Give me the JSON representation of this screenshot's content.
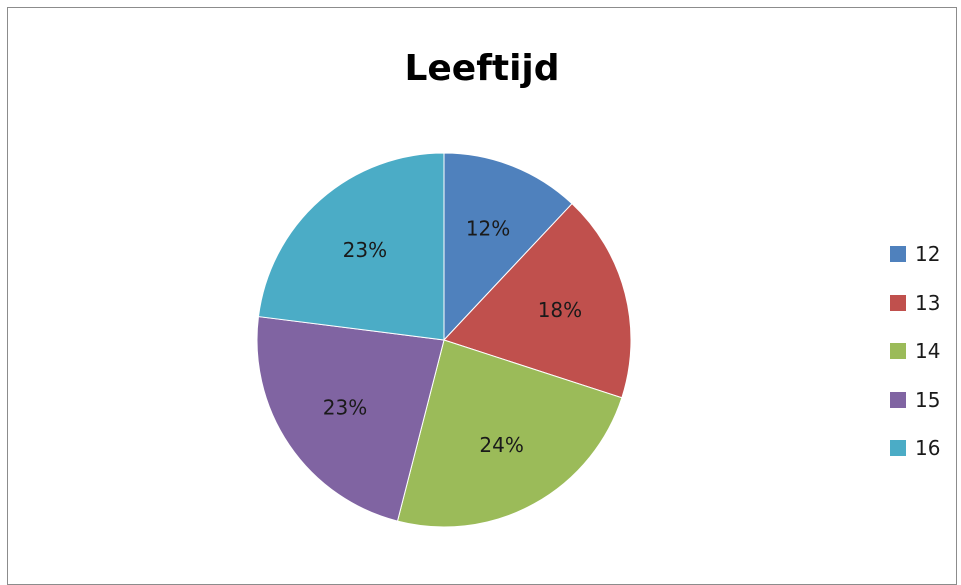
{
  "chart_data": {
    "type": "pie",
    "title": "Leeftijd",
    "categories": [
      "12",
      "13",
      "14",
      "15",
      "16"
    ],
    "values": [
      12,
      18,
      24,
      23,
      23
    ],
    "data_labels": [
      "12%",
      "18%",
      "24%",
      "23%",
      "23%"
    ],
    "colors": [
      "#4f81bd",
      "#c0504d",
      "#9bbb59",
      "#8064a2",
      "#4bacc6"
    ],
    "legend_position": "right"
  }
}
